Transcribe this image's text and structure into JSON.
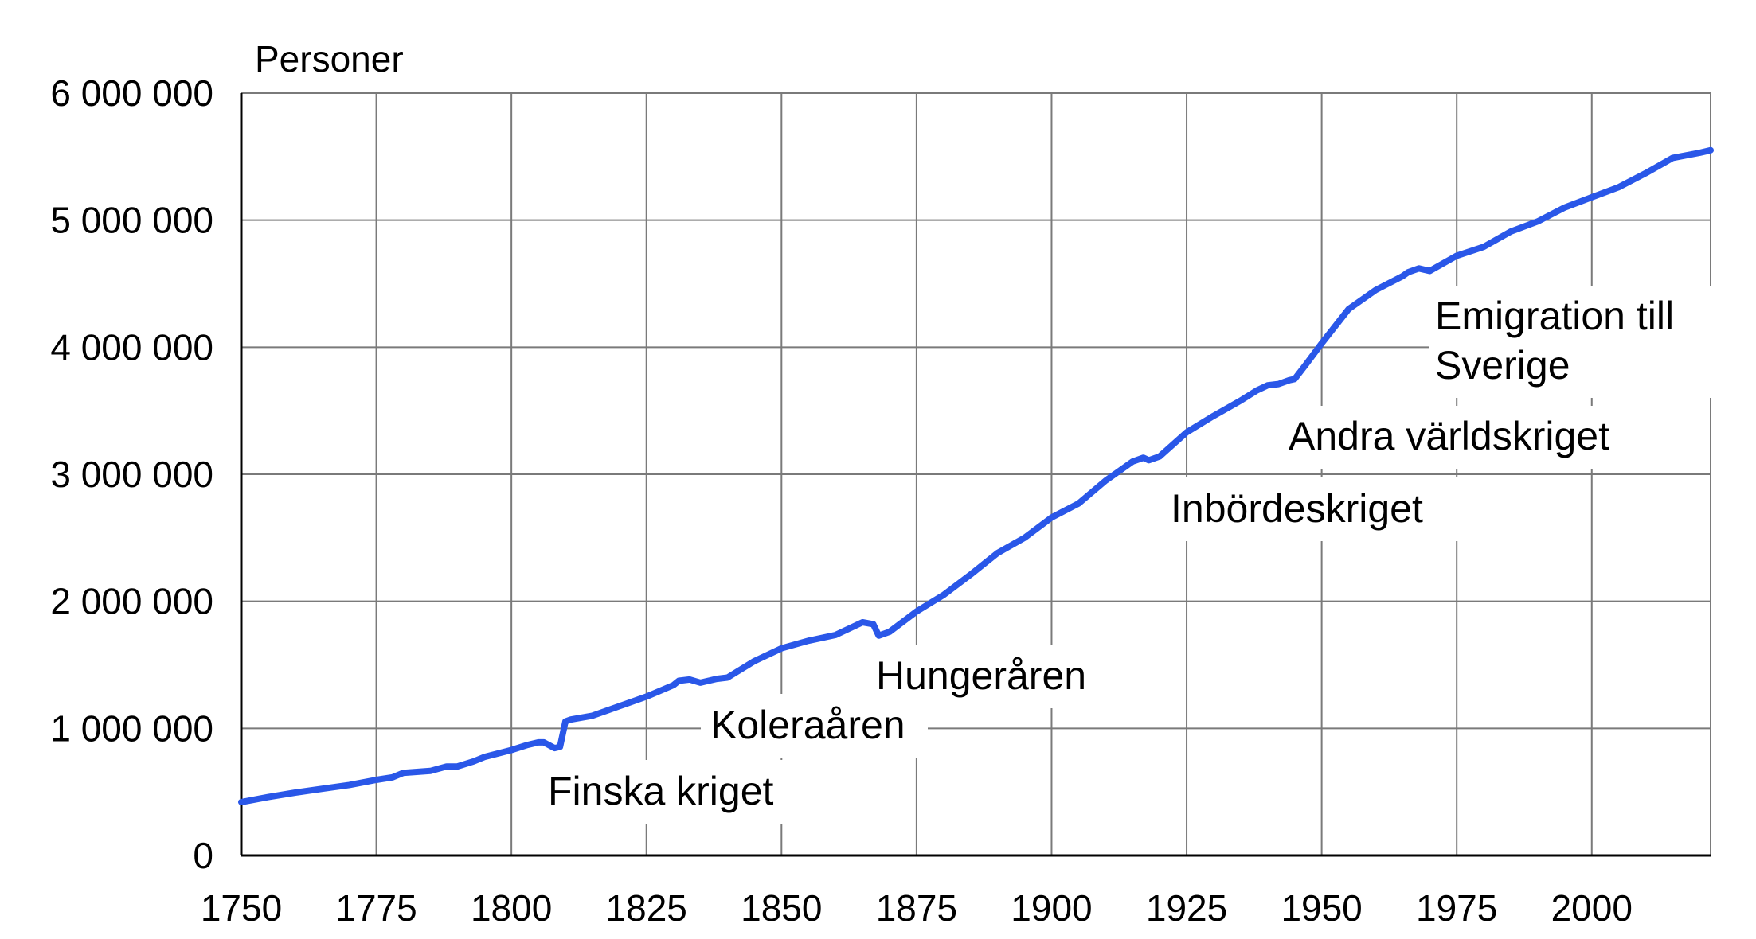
{
  "chart_data": {
    "type": "line",
    "title": "",
    "ylabel": "Personer",
    "xlabel": "",
    "xlim": [
      1750,
      2022
    ],
    "ylim": [
      0,
      6000000
    ],
    "grid": true,
    "x_ticks": [
      1750,
      1775,
      1800,
      1825,
      1850,
      1875,
      1900,
      1925,
      1950,
      1975,
      2000
    ],
    "x_tick_labels": [
      "1750",
      "1775",
      "1800",
      "1825",
      "1850",
      "1875",
      "1900",
      "1925",
      "1950",
      "1975",
      "2000"
    ],
    "y_ticks": [
      0,
      1000000,
      2000000,
      3000000,
      4000000,
      5000000,
      6000000
    ],
    "y_tick_labels": [
      "0",
      "1 000 000",
      "2 000 000",
      "3 000 000",
      "4 000 000",
      "5 000 000",
      "6 000 000"
    ],
    "line_color": "#2a57e8",
    "series": [
      {
        "x": [
          1750,
          1755,
          1760,
          1765,
          1770,
          1775,
          1778,
          1780,
          1785,
          1788,
          1790,
          1793,
          1795,
          1800,
          1803,
          1805,
          1806,
          1808,
          1809,
          1810,
          1811,
          1815,
          1820,
          1825,
          1830,
          1831,
          1833,
          1835,
          1838,
          1840,
          1845,
          1850,
          1855,
          1860,
          1865,
          1867,
          1868,
          1870,
          1875,
          1880,
          1885,
          1890,
          1895,
          1900,
          1905,
          1910,
          1915,
          1917,
          1918,
          1920,
          1925,
          1930,
          1935,
          1938,
          1940,
          1942,
          1944,
          1945,
          1947,
          1950,
          1955,
          1960,
          1965,
          1966,
          1968,
          1970,
          1975,
          1980,
          1985,
          1990,
          1995,
          2000,
          2005,
          2010,
          2015,
          2020,
          2022
        ],
        "y": [
          420000,
          460000,
          495000,
          525000,
          555000,
          595000,
          615000,
          650000,
          665000,
          700000,
          700000,
          740000,
          775000,
          830000,
          870000,
          890000,
          890000,
          845000,
          855000,
          1055000,
          1070000,
          1100000,
          1175000,
          1250000,
          1340000,
          1375000,
          1385000,
          1360000,
          1390000,
          1400000,
          1530000,
          1630000,
          1690000,
          1735000,
          1835000,
          1820000,
          1730000,
          1760000,
          1920000,
          2050000,
          2210000,
          2380000,
          2500000,
          2660000,
          2770000,
          2950000,
          3100000,
          3130000,
          3110000,
          3140000,
          3330000,
          3460000,
          3580000,
          3660000,
          3700000,
          3710000,
          3740000,
          3750000,
          3860000,
          4030000,
          4300000,
          4450000,
          4560000,
          4590000,
          4620000,
          4600000,
          4720000,
          4790000,
          4910000,
          4990000,
          5100000,
          5180000,
          5260000,
          5370000,
          5490000,
          5530000,
          5550000
        ]
      }
    ],
    "annotations": [
      {
        "text": "Finska kriget"
      },
      {
        "text": "Koleraåren"
      },
      {
        "text": "Hungeråren"
      },
      {
        "text": "Inbördeskriget"
      },
      {
        "text": "Andra världskriget"
      },
      {
        "text": "Emigration till"
      },
      {
        "text": "Sverige"
      }
    ]
  }
}
